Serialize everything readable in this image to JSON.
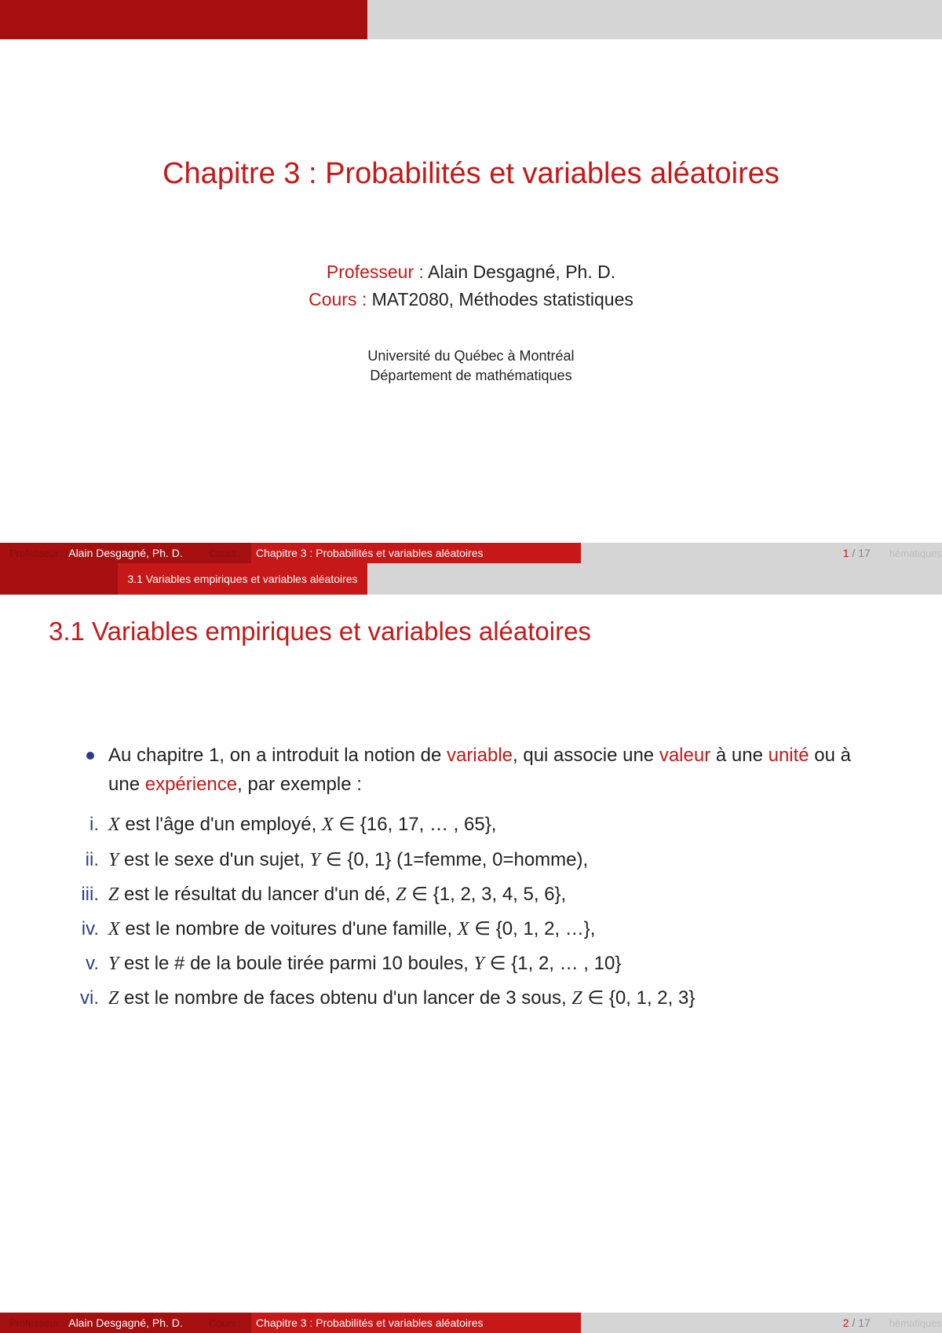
{
  "colors": {
    "brand_dark": "#a60f0f",
    "brand": "#c61818",
    "neutral_bar": "#d5d5d5",
    "enum_blue": "#2a3b8f",
    "text": "#222222",
    "footer_ghost": "#8b0d0d",
    "footer_page_muted": "#888888",
    "footer_tail": "#c0c0c0"
  },
  "slide1": {
    "title": "Chapitre 3 : Probabilités et variables aléatoires",
    "prof_label": "Professeur :",
    "prof_name": "Alain Desgagné, Ph. D.",
    "cours_label": "Cours :",
    "cours_name": "MAT2080, Méthodes statistiques",
    "univ_line1": "Université du Québec à Montréal",
    "univ_line2": "Département de mathématiques"
  },
  "footer": {
    "ghost_left": "Professeur :",
    "author": "Alain Desgagné, Ph. D.",
    "ghost_right": "Cours :",
    "title": "Chapitre 3 : Probabilités et variables aléatoires",
    "tail": "hématiques",
    "page1_cur": "1",
    "page1_sep": " / ",
    "page1_total": "17",
    "page2_cur": "2",
    "page2_sep": " / ",
    "page2_total": "17"
  },
  "slide2": {
    "tab_label": "3.1 Variables empiriques et variables aléatoires",
    "section_title": "3.1 Variables empiriques et variables aléatoires",
    "bullet_pre": "Au chapitre 1, on a introduit la notion de ",
    "bullet_hl1": "variable",
    "bullet_mid1": ", qui associe une ",
    "bullet_hl2": "valeur",
    "bullet_mid2": " à une ",
    "bullet_hl3": "unité",
    "bullet_mid3": " ou à une ",
    "bullet_hl4": "expérience",
    "bullet_post": ", par exemple :",
    "items": [
      {
        "label": "i.",
        "var": "X",
        "text_pre": " est l'âge d'un employé, ",
        "var2": "X",
        "set": " ∈ {16, 17, … , 65},",
        "tail": ""
      },
      {
        "label": "ii.",
        "var": "Y",
        "text_pre": " est le sexe d'un sujet, ",
        "var2": "Y",
        "set": " ∈ {0, 1} (1=femme, 0=homme),",
        "tail": ""
      },
      {
        "label": "iii.",
        "var": "Z",
        "text_pre": " est le résultat du lancer d'un dé, ",
        "var2": "Z",
        "set": " ∈ {1, 2, 3, 4, 5, 6},",
        "tail": ""
      },
      {
        "label": "iv.",
        "var": "X",
        "text_pre": " est le nombre de voitures d'une famille, ",
        "var2": "X",
        "set": " ∈ {0, 1, 2, …},",
        "tail": ""
      },
      {
        "label": "v.",
        "var": "Y",
        "text_pre": " est le # de la boule tirée parmi 10 boules, ",
        "var2": "Y",
        "set": " ∈ {1, 2, … , 10}",
        "tail": ""
      },
      {
        "label": "vi.",
        "var": "Z",
        "text_pre": " est le nombre de faces obtenu d'un lancer de 3 sous, ",
        "var2": "Z",
        "set": " ∈ {0, 1, 2, 3}",
        "tail": ""
      }
    ]
  }
}
